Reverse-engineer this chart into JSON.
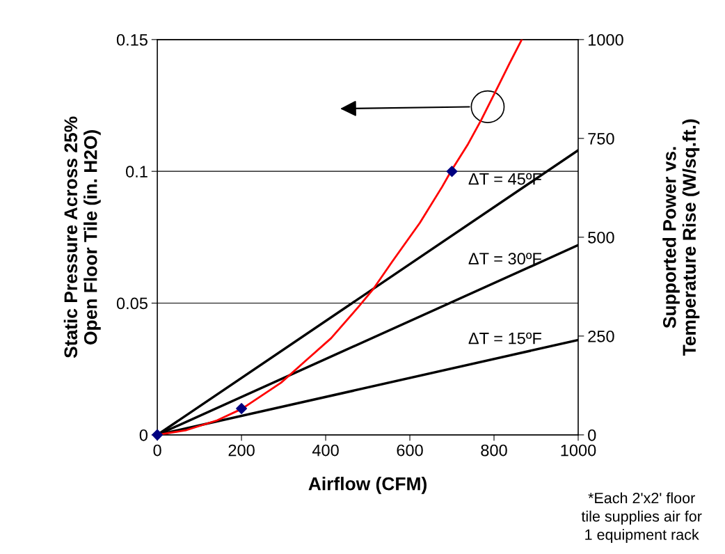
{
  "chart_data": {
    "type": "line",
    "xlabel": "Airflow (CFM)",
    "ylabel": "Static Pressure Across 25%\nOpen Floor Tile (in. H2O)",
    "y2label": "Supported Power vs.\nTemperature Rise (W/sq.ft.)",
    "xlim": [
      0,
      1000
    ],
    "xticks": [
      0,
      200,
      400,
      600,
      800,
      1000
    ],
    "ylim": [
      0,
      0.15
    ],
    "yticks": [
      0,
      0.05,
      {
        "value": 0.1,
        "label": "0.1"
      },
      0.15
    ],
    "y2lim": [
      0,
      1000
    ],
    "y2ticks": [
      0,
      250,
      500,
      750,
      1000
    ],
    "grid": "y",
    "series": [
      {
        "color": "#ff0000",
        "x": [
          0,
          69,
          142,
          201,
          294,
          353,
          413,
          479,
          512,
          558,
          624,
          677,
          698,
          737,
          770,
          813,
          836,
          866
        ],
        "values": [
          0,
          0.0018,
          0.0055,
          0.0099,
          0.0198,
          0.0282,
          0.0367,
          0.0488,
          0.0551,
          0.0657,
          0.0805,
          0.0942,
          0.1001,
          0.11,
          0.1196,
          0.1333,
          0.1407,
          0.15
        ]
      },
      {
        "type": "scatter",
        "color": "#000080",
        "marker": "diamond",
        "x": [
          0,
          200,
          700
        ],
        "values": [
          0,
          0.01,
          0.1
        ]
      },
      {
        "name": "ΔT = 45ºF",
        "axis": "y2",
        "color": "#000000",
        "x": [
          0,
          1000
        ],
        "values": [
          0,
          720
        ]
      },
      {
        "name": "ΔT = 30ºF",
        "axis": "y2",
        "color": "#000000",
        "x": [
          0,
          1000
        ],
        "values": [
          0,
          480
        ]
      },
      {
        "name": "ΔT = 15ºF",
        "axis": "y2",
        "color": "#000000",
        "x": [
          0,
          1000
        ],
        "values": [
          0,
          240
        ]
      }
    ],
    "annotations": [
      "*Each 2'x2' floor\ntile supplies air for\n1 equipment rack"
    ]
  }
}
